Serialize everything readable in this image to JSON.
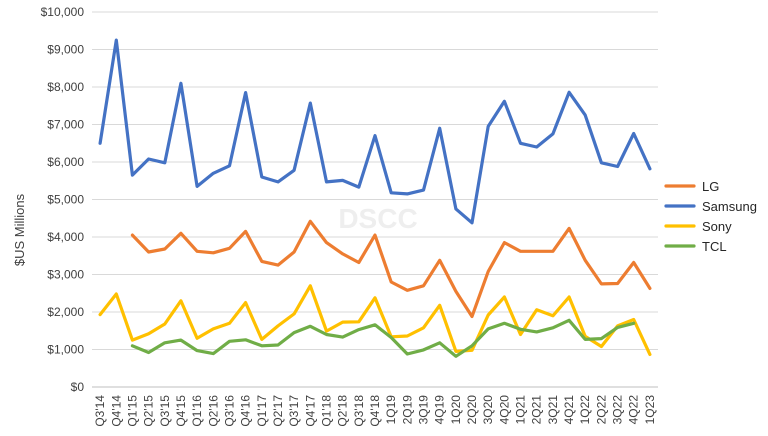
{
  "chart_data": {
    "type": "line",
    "ylabel": "$US Millions",
    "ylim": [
      0,
      10000
    ],
    "ytick_step": 1000,
    "ytick_labels": [
      "$0",
      "$1,000",
      "$2,000",
      "$3,000",
      "$4,000",
      "$5,000",
      "$6,000",
      "$7,000",
      "$8,000",
      "$9,000",
      "$10,000"
    ],
    "watermark": "DSCC",
    "grid": "horizontal",
    "legend_position": "right",
    "categories": [
      "Q3'14",
      "Q4'14",
      "Q1'15",
      "Q2'15",
      "Q3'15",
      "Q4'15",
      "Q1'16",
      "Q2'16",
      "Q3'16",
      "Q4'16",
      "Q1'17",
      "Q2'17",
      "Q3'17",
      "Q4'17",
      "Q1'18",
      "Q2'18",
      "Q3'18",
      "Q4'18",
      "1Q19",
      "2Q19",
      "3Q19",
      "4Q19",
      "1Q20",
      "2Q20",
      "3Q20",
      "4Q20",
      "1Q21",
      "2Q21",
      "3Q21",
      "4Q21",
      "1Q22",
      "2Q22",
      "3Q22",
      "4Q22",
      "1Q23"
    ],
    "series": [
      {
        "name": "LG",
        "color": "#ED7D31",
        "values": [
          null,
          null,
          4050,
          3600,
          3680,
          4100,
          3620,
          3580,
          3700,
          4150,
          3350,
          3250,
          3600,
          4420,
          3850,
          3550,
          3320,
          4050,
          2800,
          2580,
          2700,
          3380,
          2550,
          1880,
          3080,
          3850,
          3620,
          3620,
          3620,
          4230,
          3380,
          2750,
          2760,
          3320,
          2630
        ]
      },
      {
        "name": "Samsung",
        "color": "#4472C4",
        "values": [
          6500,
          9250,
          5650,
          6080,
          5980,
          8100,
          5350,
          5700,
          5900,
          7850,
          5600,
          5470,
          5780,
          7570,
          5470,
          5510,
          5330,
          6700,
          5180,
          5150,
          5250,
          6900,
          4750,
          4380,
          6950,
          7620,
          6500,
          6400,
          6750,
          7860,
          7250,
          5980,
          5880,
          6760,
          5820
        ]
      },
      {
        "name": "Sony",
        "color": "#FFC000",
        "values": [
          1930,
          2480,
          1250,
          1420,
          1680,
          2300,
          1300,
          1550,
          1700,
          2250,
          1270,
          1630,
          1950,
          2700,
          1490,
          1730,
          1740,
          2380,
          1340,
          1360,
          1580,
          2180,
          950,
          980,
          1920,
          2400,
          1400,
          2060,
          1900,
          2400,
          1350,
          1080,
          1630,
          1800,
          870
        ]
      },
      {
        "name": "TCL",
        "color": "#70AD47",
        "values": [
          null,
          null,
          1100,
          920,
          1180,
          1250,
          970,
          890,
          1220,
          1260,
          1100,
          1120,
          1450,
          1620,
          1400,
          1330,
          1530,
          1660,
          1320,
          880,
          990,
          1180,
          820,
          1100,
          1550,
          1700,
          1540,
          1470,
          1580,
          1780,
          1270,
          1290,
          1590,
          1700,
          null
        ]
      }
    ]
  }
}
